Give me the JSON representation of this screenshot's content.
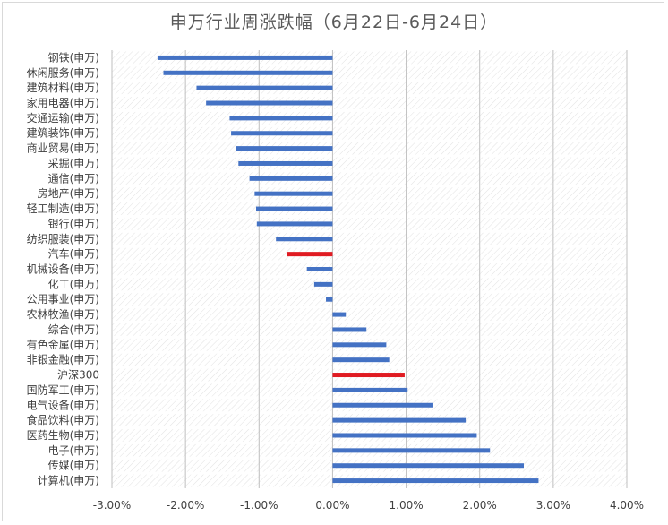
{
  "chart_data": {
    "type": "bar",
    "orientation": "horizontal",
    "title": "申万行业周涨跌幅（6月22日-6月24日）",
    "categories": [
      "钢铁(申万)",
      "休闲服务(申万)",
      "建筑材料(申万)",
      "家用电器(申万)",
      "交通运输(申万)",
      "建筑装饰(申万)",
      "商业贸易(申万)",
      "采掘(申万)",
      "通信(申万)",
      "房地产(申万)",
      "轻工制造(申万)",
      "银行(申万)",
      "纺织服装(申万)",
      "汽车(申万)",
      "机械设备(申万)",
      "化工(申万)",
      "公用事业(申万)",
      "农林牧渔(申万)",
      "综合(申万)",
      "有色金属(申万)",
      "非银金融(申万)",
      "沪深300",
      "国防军工(申万)",
      "电气设备(申万)",
      "食品饮料(申万)",
      "医药生物(申万)",
      "电子(申万)",
      "传媒(申万)",
      "计算机(申万)"
    ],
    "values": [
      -2.38,
      -2.3,
      -1.85,
      -1.72,
      -1.4,
      -1.38,
      -1.31,
      -1.28,
      -1.13,
      -1.06,
      -1.04,
      -1.03,
      -0.77,
      -0.62,
      -0.35,
      -0.25,
      -0.09,
      0.18,
      0.46,
      0.73,
      0.77,
      0.98,
      1.02,
      1.37,
      1.81,
      1.96,
      2.14,
      2.6,
      2.8
    ],
    "highlight": [
      "汽车(申万)",
      "沪深300"
    ],
    "colors": {
      "bar": "#4472c4",
      "highlight": "#e01b22",
      "axis": "#bfbfbf",
      "text": "#404040"
    },
    "xlim": [
      -3.0,
      4.0
    ],
    "xticks": [
      "-3.00%",
      "-2.00%",
      "-1.00%",
      "0.00%",
      "1.00%",
      "2.00%",
      "3.00%",
      "4.00%"
    ],
    "grid": true,
    "legend": "none"
  }
}
